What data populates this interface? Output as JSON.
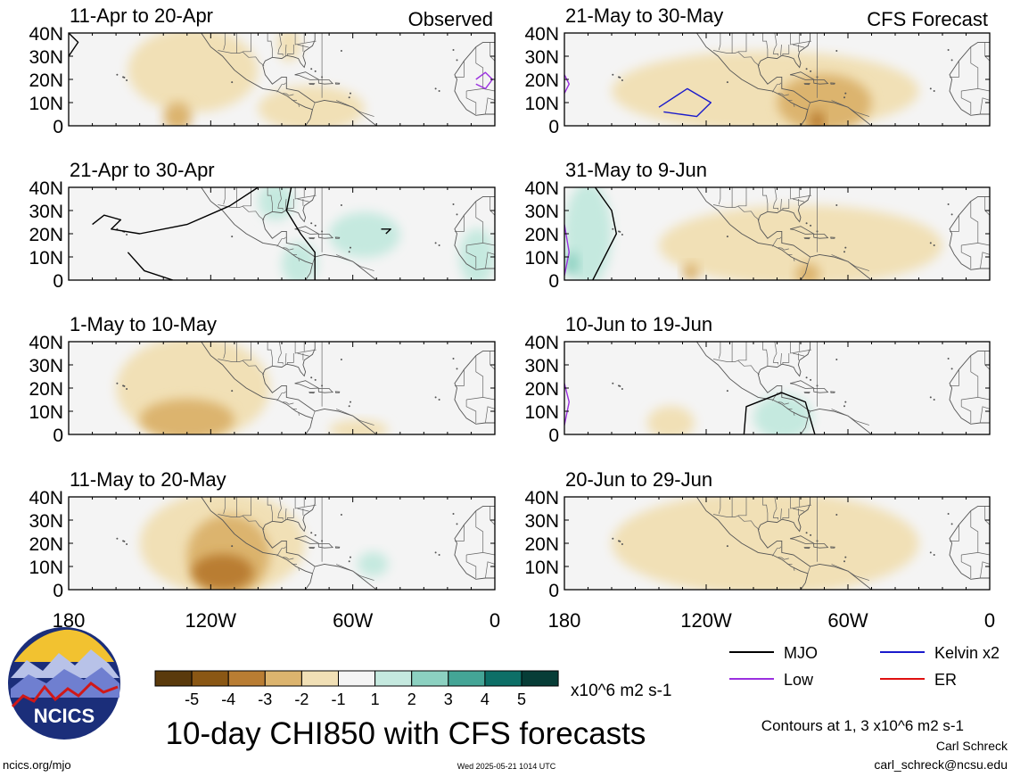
{
  "chart_data": {
    "type": "heatmap",
    "title": "10-day CHI850 with CFS forecasts",
    "observed_label": "Observed",
    "forecast_label": "CFS Forecast",
    "lat_ticks": [
      "40N",
      "30N",
      "20N",
      "10N",
      "0"
    ],
    "lon_ticks": [
      "180",
      "120W",
      "60W",
      "0"
    ],
    "lon_range": [
      -180,
      0
    ],
    "lat_range": [
      0,
      40
    ],
    "colorbar": {
      "ticks": [
        "-5",
        "-4",
        "-3",
        "-2",
        "-1",
        "1",
        "2",
        "3",
        "4",
        "5"
      ],
      "units": "x10^6 m2 s-1",
      "colors": [
        "#5a3a0c",
        "#8a5714",
        "#b97d33",
        "#dcb46e",
        "#f1e0b6",
        "#f4f4f4",
        "#c5e9df",
        "#8cd1c1",
        "#44a596",
        "#0d6f67",
        "#073d37"
      ]
    },
    "legend": [
      {
        "label": "MJO",
        "color": "#000000"
      },
      {
        "label": "Kelvin x2",
        "color": "#1a1acc"
      },
      {
        "label": "Low",
        "color": "#9b30e0"
      },
      {
        "label": "ER",
        "color": "#e01010"
      }
    ],
    "contour_note": "Contours at 1, 3 x10^6 m2 s-1",
    "panels": [
      {
        "column": "observed",
        "period": "11-Apr to 20-Apr",
        "anomalies": [
          {
            "lon": [
              -155,
              -100
            ],
            "lat": [
              8,
              40
            ],
            "value": -1.5
          },
          {
            "lon": [
              -100,
              -55
            ],
            "lat": [
              0,
              15
            ],
            "value": -1.5
          },
          {
            "lon": [
              -140,
              -128
            ],
            "lat": [
              0,
              8
            ],
            "value": -2.5
          },
          {
            "lon": [
              -92,
              -82
            ],
            "lat": [
              30,
              40
            ],
            "value": -1.5
          }
        ],
        "contours": [
          {
            "type": "MJO",
            "points": [
              [
                -180,
                40
              ],
              [
                -176,
                36
              ],
              [
                -180,
                30
              ]
            ]
          },
          {
            "type": "Low",
            "points": [
              [
                -8,
                20
              ],
              [
                -4,
                23
              ],
              [
                -1,
                20
              ],
              [
                -4,
                16
              ],
              [
                -8,
                18
              ]
            ]
          }
        ]
      },
      {
        "column": "observed",
        "period": "21-Apr to 30-Apr",
        "anomalies": [
          {
            "lon": [
              -100,
              -85
            ],
            "lat": [
              28,
              40
            ],
            "value": 1.5
          },
          {
            "lon": [
              -90,
              -75
            ],
            "lat": [
              0,
              14
            ],
            "value": 1.5
          },
          {
            "lon": [
              -70,
              -40
            ],
            "lat": [
              12,
              27
            ],
            "value": 1.5
          },
          {
            "lon": [
              -15,
              0
            ],
            "lat": [
              0,
              20
            ],
            "value": 1.5
          }
        ],
        "contours": [
          {
            "type": "MJO",
            "points": [
              [
                -170,
                24
              ],
              [
                -165,
                28
              ],
              [
                -158,
                26
              ],
              [
                -162,
                22
              ],
              [
                -150,
                20
              ],
              [
                -130,
                24
              ],
              [
                -112,
                32
              ],
              [
                -100,
                40
              ]
            ]
          },
          {
            "type": "MJO",
            "points": [
              [
                -155,
                12
              ],
              [
                -148,
                4
              ],
              [
                -136,
                0
              ]
            ]
          },
          {
            "type": "MJO",
            "points": [
              [
                -86,
                40
              ],
              [
                -88,
                30
              ],
              [
                -82,
                20
              ],
              [
                -76,
                12
              ],
              [
                -76,
                0
              ]
            ]
          },
          {
            "type": "MJO",
            "points": [
              [
                -48,
                22
              ],
              [
                -44,
                22
              ],
              [
                -46,
                20
              ]
            ]
          }
        ]
      },
      {
        "column": "observed",
        "period": "1-May to 10-May",
        "anomalies": [
          {
            "lon": [
              -160,
              -95
            ],
            "lat": [
              0,
              40
            ],
            "value": -1.5
          },
          {
            "lon": [
              -150,
              -110
            ],
            "lat": [
              0,
              13
            ],
            "value": -2.5
          },
          {
            "lon": [
              -70,
              -45
            ],
            "lat": [
              0,
              4
            ],
            "value": -1.5
          }
        ],
        "contours": []
      },
      {
        "column": "observed",
        "period": "11-May to 20-May",
        "anomalies": [
          {
            "lon": [
              -150,
              -80
            ],
            "lat": [
              0,
              40
            ],
            "value": -1.5
          },
          {
            "lon": [
              -130,
              -95
            ],
            "lat": [
              0,
              30
            ],
            "value": -2.5
          },
          {
            "lon": [
              -128,
              -102
            ],
            "lat": [
              2,
              13
            ],
            "value": -3.5
          },
          {
            "lon": [
              -58,
              -45
            ],
            "lat": [
              8,
              14
            ],
            "value": 1.5
          }
        ],
        "contours": []
      },
      {
        "column": "forecast",
        "period": "21-May to 30-May",
        "anomalies": [
          {
            "lon": [
              -160,
              -30
            ],
            "lat": [
              0,
              30
            ],
            "value": -1.5
          },
          {
            "lon": [
              -90,
              -50
            ],
            "lat": [
              0,
              20
            ],
            "value": -2.5
          },
          {
            "lon": [
              -76,
              -70
            ],
            "lat": [
              0,
              4
            ],
            "value": -3.5
          }
        ],
        "contours": [
          {
            "type": "Kelvin x2",
            "points": [
              [
                -140,
                8
              ],
              [
                -128,
                16
              ],
              [
                -118,
                10
              ],
              [
                -124,
                4
              ],
              [
                -138,
                6
              ]
            ]
          },
          {
            "type": "Low",
            "points": [
              [
                -180,
                22
              ],
              [
                -178,
                18
              ],
              [
                -180,
                14
              ]
            ]
          }
        ]
      },
      {
        "column": "forecast",
        "period": "31-May to 9-Jun",
        "anomalies": [
          {
            "lon": [
              -180,
              -160
            ],
            "lat": [
              0,
              40
            ],
            "value": 1.5
          },
          {
            "lon": [
              -180,
              -174
            ],
            "lat": [
              4,
              10
            ],
            "value": 2.5
          },
          {
            "lon": [
              -140,
              -20
            ],
            "lat": [
              0,
              30
            ],
            "value": -1.5
          },
          {
            "lon": [
              -82,
              -72
            ],
            "lat": [
              0,
              5
            ],
            "value": -2.5
          },
          {
            "lon": [
              -130,
              -123
            ],
            "lat": [
              2,
              5
            ],
            "value": -2.5
          }
        ],
        "contours": [
          {
            "type": "MJO",
            "points": [
              [
                -167,
                40
              ],
              [
                -160,
                30
              ],
              [
                -158,
                20
              ],
              [
                -164,
                8
              ],
              [
                -168,
                0
              ]
            ]
          },
          {
            "type": "Low",
            "points": [
              [
                -180,
                24
              ],
              [
                -178,
                12
              ],
              [
                -180,
                2
              ]
            ]
          }
        ]
      },
      {
        "column": "forecast",
        "period": "10-Jun to 19-Jun",
        "anomalies": [
          {
            "lon": [
              -145,
              -125
            ],
            "lat": [
              0,
              10
            ],
            "value": -1.5
          },
          {
            "lon": [
              -100,
              -75
            ],
            "lat": [
              0,
              15
            ],
            "value": 1.5
          }
        ],
        "contours": [
          {
            "type": "MJO",
            "points": [
              [
                -104,
                0
              ],
              [
                -103,
                12
              ],
              [
                -88,
                18
              ],
              [
                -78,
                14
              ],
              [
                -74,
                0
              ]
            ]
          },
          {
            "type": "Low",
            "points": [
              [
                -180,
                22
              ],
              [
                -178,
                14
              ],
              [
                -180,
                4
              ]
            ]
          }
        ]
      },
      {
        "column": "forecast",
        "period": "20-Jun to 29-Jun",
        "anomalies": [
          {
            "lon": [
              -160,
              -30
            ],
            "lat": [
              0,
              40
            ],
            "value": -1.5
          }
        ],
        "contours": []
      }
    ]
  },
  "footer": {
    "logo_text": "NCICS",
    "site": "ncics.org/mjo",
    "timestamp": "Wed 2025-05-21 1014 UTC",
    "author": "Carl Schreck",
    "email": "carl_schreck@ncsu.edu"
  }
}
